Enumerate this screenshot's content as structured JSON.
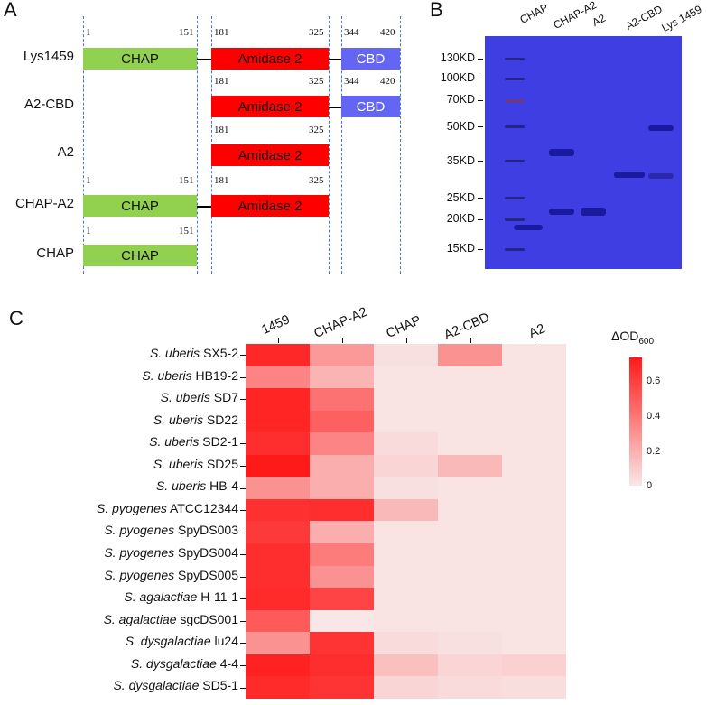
{
  "panels": {
    "a": "A",
    "b": "B",
    "c": "C"
  },
  "panel_a": {
    "rows": [
      {
        "label": "Lys1459",
        "domains": [
          "CHAP",
          "Amidase 2",
          "CBD"
        ]
      },
      {
        "label": "A2-CBD",
        "domains": [
          "Amidase 2",
          "CBD"
        ]
      },
      {
        "label": "A2",
        "domains": [
          "Amidase 2"
        ]
      },
      {
        "label": "CHAP-A2",
        "domains": [
          "CHAP",
          "Amidase 2"
        ]
      },
      {
        "label": "CHAP",
        "domains": [
          "CHAP"
        ]
      }
    ],
    "positions": [
      "1",
      "151",
      "181",
      "325",
      "344",
      "420"
    ]
  },
  "panel_b": {
    "lanes": [
      "CHAP",
      "CHAP-A2",
      "A2",
      "A2-CBD",
      "Lys 1459"
    ],
    "markers": [
      "130KD",
      "100KD",
      "70KD",
      "50KD",
      "35KD",
      "25KD",
      "20KD",
      "15KD"
    ],
    "colors": {
      "gel": "#3e3ee2",
      "band": "#1a1a9e"
    }
  },
  "panel_c": {
    "columns": [
      "1459",
      "CHAP-A2",
      "CHAP",
      "A2-CBD",
      "A2"
    ],
    "legend_title": "ΔOD",
    "legend_sub": "600",
    "colorbar_ticks": [
      "0.6",
      "0.4",
      "0.2",
      "0"
    ],
    "rows": [
      {
        "species": "S. uberis",
        "strain": "SX5-2"
      },
      {
        "species": "S. uberis",
        "strain": "HB19-2"
      },
      {
        "species": "S. uberis",
        "strain": "SD7"
      },
      {
        "species": "S. uberis",
        "strain": "SD22"
      },
      {
        "species": "S. uberis",
        "strain": "SD2-1"
      },
      {
        "species": "S. uberis",
        "strain": "SD25"
      },
      {
        "species": "S. uberis",
        "strain": "HB-4"
      },
      {
        "species": "S. pyogenes",
        "strain": "ATCC12344"
      },
      {
        "species": "S. pyogenes",
        "strain": "SpyDS003"
      },
      {
        "species": "S. pyogenes",
        "strain": "SpyDS004"
      },
      {
        "species": "S. pyogenes",
        "strain": "SpyDS005"
      },
      {
        "species": "S. agalactiae",
        "strain": "H-11-1"
      },
      {
        "species": "S. agalactiae",
        "strain": "sgcDS001"
      },
      {
        "species": "S. dysgalactiae",
        "strain": "lu24"
      },
      {
        "species": "S. dysgalactiae",
        "strain": "4-4"
      },
      {
        "species": "S. dysgalactiae",
        "strain": "SD5-1"
      }
    ],
    "colors": {
      "low": "#f9e6e6",
      "high": "#ff1a1a"
    }
  },
  "chart_data": {
    "type": "heatmap",
    "x": [
      "1459",
      "CHAP-A2",
      "CHAP",
      "A2-CBD",
      "A2"
    ],
    "y": [
      "S. uberis SX5-2",
      "S. uberis HB19-2",
      "S. uberis SD7",
      "S. uberis SD22",
      "S. uberis SD2-1",
      "S. uberis SD25",
      "S. uberis HB-4",
      "S. pyogenes ATCC12344",
      "S. pyogenes SpyDS003",
      "S. pyogenes SpyDS004",
      "S. pyogenes SpyDS005",
      "S. agalactiae H-11-1",
      "S. agalactiae sgcDS001",
      "S. dysgalactiae lu24",
      "S. dysgalactiae 4-4",
      "S. dysgalactiae SD5-1"
    ],
    "values": [
      [
        0.68,
        0.28,
        0.02,
        0.3,
        0.01
      ],
      [
        0.35,
        0.18,
        0.01,
        0.01,
        0.01
      ],
      [
        0.69,
        0.42,
        0.01,
        0.01,
        0.01
      ],
      [
        0.69,
        0.48,
        0.01,
        0.01,
        0.01
      ],
      [
        0.66,
        0.35,
        0.04,
        0.01,
        0.01
      ],
      [
        0.73,
        0.2,
        0.06,
        0.16,
        0.01
      ],
      [
        0.3,
        0.2,
        0.02,
        0.01,
        0.01
      ],
      [
        0.65,
        0.66,
        0.16,
        0.01,
        0.01
      ],
      [
        0.62,
        0.2,
        0.01,
        0.01,
        0.01
      ],
      [
        0.66,
        0.38,
        0.01,
        0.01,
        0.01
      ],
      [
        0.66,
        0.3,
        0.01,
        0.01,
        0.01
      ],
      [
        0.67,
        0.58,
        0.01,
        0.01,
        0.01
      ],
      [
        0.5,
        0.0,
        0.01,
        0.01,
        0.01
      ],
      [
        0.3,
        0.64,
        0.04,
        0.02,
        0.01
      ],
      [
        0.7,
        0.66,
        0.14,
        0.06,
        0.08
      ],
      [
        0.67,
        0.64,
        0.06,
        0.04,
        0.03
      ]
    ],
    "zlim": [
      0,
      0.73
    ]
  }
}
